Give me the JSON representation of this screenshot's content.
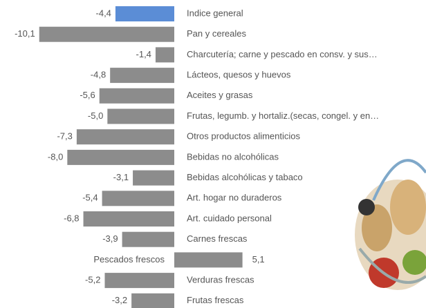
{
  "chart_data": {
    "type": "bar",
    "orientation": "horizontal",
    "categories": [
      "Indice general",
      "Pan y cereales",
      "Charcutería; carne y pescado en consv. y sus…",
      "Lácteos, quesos y huevos",
      "Aceites y grasas",
      "Frutas, legumb. y hortaliz.(secas, congel. y en…",
      "Otros productos alimenticios",
      "Bebidas no alcohólicas",
      "Bebidas alcohólicas y tabaco",
      "Art. hogar no duraderos",
      "Art. cuidado personal",
      "Carnes frescas",
      "Pescados frescos",
      "Verduras frescas",
      "Frutas frescas"
    ],
    "values": [
      -4.4,
      -10.1,
      -1.4,
      -4.8,
      -5.6,
      -5.0,
      -7.3,
      -8.0,
      -3.1,
      -5.4,
      -6.8,
      -3.9,
      5.1,
      -5.2,
      -3.2
    ],
    "value_labels": [
      "-4,4",
      "-10,1",
      "-1,4",
      "-4,8",
      "-5,6",
      "-5,0",
      "-7,3",
      "-8,0",
      "-3,1",
      "-5,4",
      "-6,8",
      "-3,9",
      "5,1",
      "-5,2",
      "-3,2"
    ],
    "colors": [
      "#5b8dd6",
      "#8c8c8c",
      "#8c8c8c",
      "#8c8c8c",
      "#8c8c8c",
      "#8c8c8c",
      "#8c8c8c",
      "#8c8c8c",
      "#8c8c8c",
      "#8c8c8c",
      "#8c8c8c",
      "#8c8c8c",
      "#8c8c8c",
      "#8c8c8c",
      "#8c8c8c"
    ],
    "xlim": [
      -12,
      6
    ]
  }
}
